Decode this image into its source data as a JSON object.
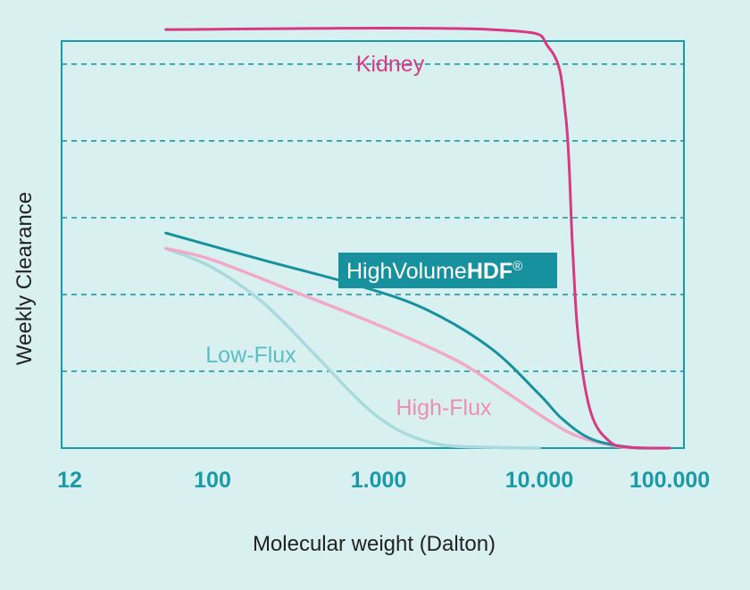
{
  "chart_data": {
    "type": "line",
    "xlabel": "Molecular weight (Dalton)",
    "ylabel": "Weekly Clearance",
    "x_scale": "log",
    "x_ticks": [
      {
        "value": 12,
        "label": "12"
      },
      {
        "value": 100,
        "label": "100"
      },
      {
        "value": 1000,
        "label": "1.000"
      },
      {
        "value": 10000,
        "label": "10.000"
      },
      {
        "value": 100000,
        "label": "100.000"
      }
    ],
    "y_gridlines": [
      1,
      2,
      3,
      4,
      5
    ],
    "ylim": [
      0,
      5.3
    ],
    "grid": "horizontal dashed",
    "series": [
      {
        "name": "Kidney",
        "color": "#d63a82",
        "x": [
          50,
          5000,
          12000,
          16000,
          18000,
          20000,
          25000,
          35000,
          50000,
          100000
        ],
        "y": [
          5.45,
          5.45,
          5.2,
          4.3,
          2.6,
          1.4,
          0.45,
          0.08,
          0.01,
          0
        ]
      },
      {
        "name": "HighVolumeHDF",
        "name_regular": "HighVolume",
        "name_bold": "HDF",
        "name_mark": "®",
        "color": "#16919d",
        "x": [
          50,
          200,
          800,
          2000,
          5000,
          10000,
          15000,
          25000,
          50000,
          100000
        ],
        "y": [
          2.8,
          2.45,
          2.1,
          1.8,
          1.3,
          0.7,
          0.38,
          0.12,
          0.01,
          0
        ]
      },
      {
        "name": "High-Flux",
        "color": "#f2a9c8",
        "x": [
          50,
          100,
          300,
          1000,
          3000,
          6000,
          12000,
          20000,
          40000,
          60000
        ],
        "y": [
          2.6,
          2.45,
          2.05,
          1.6,
          1.15,
          0.75,
          0.35,
          0.15,
          0.02,
          0
        ]
      },
      {
        "name": "Low-Flux",
        "color": "#a9dadd",
        "x": [
          50,
          100,
          200,
          400,
          700,
          1000,
          1500,
          2500,
          5000,
          10000
        ],
        "y": [
          2.6,
          2.35,
          1.9,
          1.25,
          0.7,
          0.4,
          0.18,
          0.04,
          0.01,
          0
        ]
      }
    ]
  }
}
